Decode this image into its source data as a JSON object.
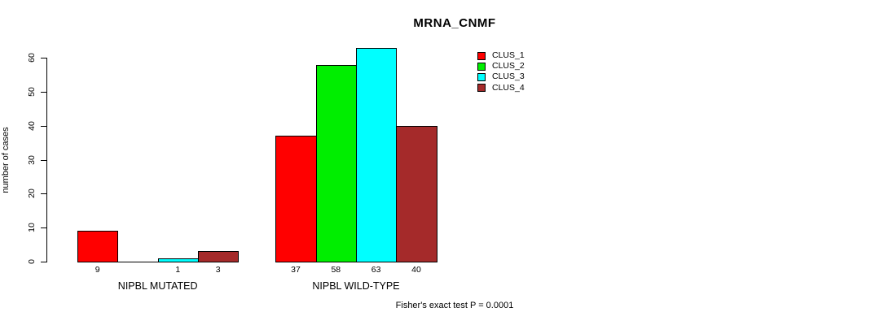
{
  "chart_data": {
    "type": "bar",
    "title": "MRNA_CNMF",
    "ylabel": "number of cases",
    "ylim": [
      0,
      60
    ],
    "yticks": [
      0,
      10,
      20,
      30,
      40,
      50,
      60
    ],
    "categories": [
      "NIPBL MUTATED",
      "NIPBL WILD-TYPE"
    ],
    "series": [
      {
        "name": "CLUS_1",
        "color": "#ff0000",
        "values": [
          9,
          37
        ]
      },
      {
        "name": "CLUS_2",
        "color": "#00ee00",
        "values": [
          0,
          58
        ]
      },
      {
        "name": "CLUS_3",
        "color": "#00ffff",
        "values": [
          1,
          63
        ]
      },
      {
        "name": "CLUS_4",
        "color": "#a52a2a",
        "values": [
          3,
          40
        ]
      }
    ],
    "bar_value_labels_shown": [
      "9",
      "1",
      "3",
      "37",
      "58",
      "63",
      "40"
    ],
    "hide_zero_value_labels": true,
    "annotation": "Fisher's exact test P = 0.0001",
    "legend_position": "top-right",
    "grid": false,
    "background_color": "#ffffff",
    "axis_color": "#000000"
  }
}
